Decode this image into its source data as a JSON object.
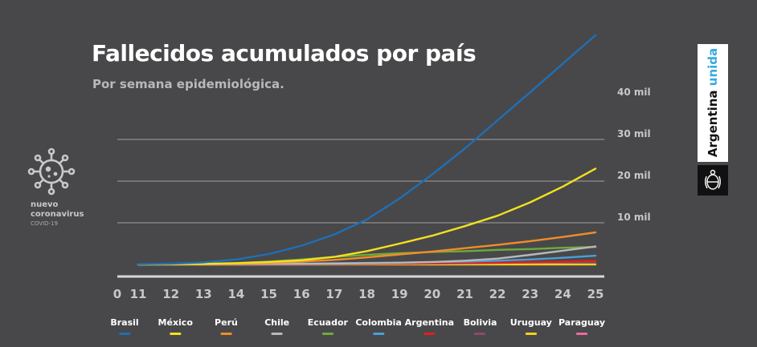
{
  "header": {
    "title": "Fallecidos acumulados por país",
    "subtitle": "Por semana epidemiológica."
  },
  "logo": {
    "line1": "nuevo",
    "line2": "coronavirus",
    "line3": "COVID-19",
    "icon": "virus-icon",
    "color": "#c9c9c9"
  },
  "brand": {
    "word1": "Argentina",
    "word2": "unida",
    "accent_color": "#38a9e0",
    "seal_icon": "coat-of-arms-icon"
  },
  "chart_data": {
    "type": "line",
    "x_ticks": [
      "0",
      "11",
      "12",
      "13",
      "14",
      "15",
      "16",
      "17",
      "18",
      "19",
      "20",
      "21",
      "22",
      "23",
      "24",
      "25"
    ],
    "x": [
      11,
      12,
      13,
      14,
      15,
      16,
      17,
      18,
      19,
      20,
      21,
      22,
      23,
      24,
      25
    ],
    "y_ticks": [
      {
        "value": 10000,
        "label": "10 mil"
      },
      {
        "value": 20000,
        "label": "20 mil"
      },
      {
        "value": 30000,
        "label": "30 mil"
      },
      {
        "value": 40000,
        "label": "40 mil"
      }
    ],
    "ylim": [
      0,
      50000
    ],
    "grid": true,
    "series": [
      {
        "name": "Brasil",
        "color": "#1f6fb5",
        "values": [
          50,
          200,
          500,
          1200,
          2500,
          4500,
          7200,
          10800,
          15800,
          21600,
          27800,
          34600,
          41300,
          48200,
          55000
        ]
      },
      {
        "name": "México",
        "color": "#f4e020",
        "values": [
          20,
          60,
          150,
          300,
          600,
          1000,
          1800,
          3200,
          5000,
          6900,
          9200,
          11700,
          14900,
          18700,
          23000
        ]
      },
      {
        "name": "Perú",
        "color": "#f28c28",
        "values": [
          10,
          40,
          100,
          200,
          400,
          700,
          1100,
          1700,
          2400,
          3100,
          3900,
          4700,
          5600,
          6600,
          7700
        ]
      },
      {
        "name": "Chile",
        "color": "#b8b8b8",
        "values": [
          5,
          20,
          40,
          70,
          110,
          160,
          220,
          300,
          400,
          600,
          900,
          1400,
          2300,
          3300,
          4300
        ]
      },
      {
        "name": "Ecuador",
        "color": "#6dab3c",
        "values": [
          10,
          50,
          150,
          350,
          700,
          1200,
          1800,
          2300,
          2700,
          3000,
          3200,
          3500,
          3700,
          4000,
          4200
        ]
      },
      {
        "name": "Colombia",
        "color": "#4a9fd9",
        "values": [
          5,
          20,
          50,
          100,
          150,
          200,
          280,
          360,
          450,
          550,
          700,
          900,
          1200,
          1600,
          2100
        ]
      },
      {
        "name": "Argentina",
        "color": "#e0201b",
        "values": [
          5,
          15,
          30,
          60,
          90,
          130,
          170,
          210,
          250,
          300,
          370,
          450,
          560,
          700,
          900
        ]
      },
      {
        "name": "Bolivia",
        "color": "#8c4a6e",
        "values": [
          2,
          5,
          10,
          20,
          40,
          60,
          90,
          130,
          180,
          240,
          300,
          380,
          460,
          560,
          700
        ]
      },
      {
        "name": "Uruguay",
        "color": "#f6cf1c",
        "values": [
          1,
          3,
          5,
          8,
          10,
          12,
          15,
          18,
          20,
          20,
          21,
          22,
          23,
          23,
          24
        ]
      },
      {
        "name": "Paraguay",
        "color": "#ea6aa6",
        "values": [
          1,
          2,
          3,
          5,
          7,
          8,
          9,
          10,
          11,
          11,
          12,
          13,
          14,
          15,
          16
        ]
      }
    ]
  }
}
